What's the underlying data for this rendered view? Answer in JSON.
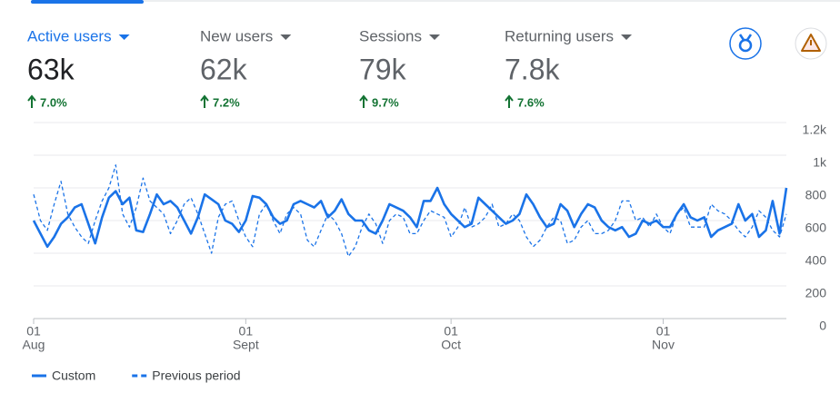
{
  "metrics": [
    {
      "label": "Active users",
      "value": "63k",
      "change": "7.0%"
    },
    {
      "label": "New users",
      "value": "62k",
      "change": "7.2%"
    },
    {
      "label": "Sessions",
      "value": "79k",
      "change": "9.7%"
    },
    {
      "label": "Returning users",
      "value": "7.8k",
      "change": "7.6%"
    }
  ],
  "chart_data": {
    "type": "line",
    "categories": [
      [
        "01",
        "Aug"
      ],
      null,
      null,
      null,
      null,
      null,
      null,
      null,
      null,
      null,
      null,
      null,
      null,
      null,
      null,
      null,
      null,
      null,
      null,
      null,
      null,
      null,
      null,
      null,
      null,
      null,
      null,
      null,
      null,
      null,
      null,
      [
        "01",
        "Sept"
      ],
      null,
      null,
      null,
      null,
      null,
      null,
      null,
      null,
      null,
      null,
      null,
      null,
      null,
      null,
      null,
      null,
      null,
      null,
      null,
      null,
      null,
      null,
      null,
      null,
      null,
      null,
      null,
      null,
      null,
      [
        "01",
        "Oct"
      ],
      null,
      null,
      null,
      null,
      null,
      null,
      null,
      null,
      null,
      null,
      null,
      null,
      null,
      null,
      null,
      null,
      null,
      null,
      null,
      null,
      null,
      null,
      null,
      null,
      null,
      null,
      null,
      null,
      null,
      null,
      [
        "01",
        "Nov"
      ],
      null,
      null,
      null,
      null,
      null,
      null,
      null,
      null,
      null,
      null,
      null,
      null,
      null,
      null,
      null,
      null,
      null,
      null
    ],
    "series": [
      {
        "name": "Custom",
        "color": "#1a73e8",
        "dashed": false,
        "values": [
          600,
          520,
          440,
          500,
          580,
          620,
          680,
          700,
          580,
          460,
          620,
          740,
          780,
          700,
          740,
          540,
          530,
          640,
          760,
          700,
          720,
          680,
          600,
          520,
          620,
          760,
          730,
          700,
          600,
          580,
          530,
          600,
          750,
          740,
          700,
          620,
          580,
          600,
          700,
          720,
          700,
          680,
          720,
          620,
          660,
          730,
          640,
          600,
          600,
          540,
          520,
          600,
          700,
          680,
          660,
          620,
          560,
          720,
          720,
          800,
          700,
          640,
          600,
          560,
          580,
          740,
          700,
          660,
          620,
          580,
          600,
          640,
          760,
          700,
          620,
          560,
          580,
          700,
          660,
          560,
          640,
          700,
          680,
          600,
          560,
          540,
          560,
          500,
          520,
          600,
          580,
          600,
          560,
          560,
          640,
          700,
          620,
          600,
          620,
          500,
          540,
          560,
          580,
          700,
          600,
          640,
          500,
          540,
          720,
          520,
          800
        ]
      },
      {
        "name": "Previous period",
        "color": "#1a73e8",
        "dashed": true,
        "values": [
          760,
          600,
          540,
          700,
          840,
          640,
          560,
          500,
          460,
          600,
          720,
          800,
          940,
          640,
          560,
          680,
          860,
          720,
          680,
          640,
          520,
          600,
          700,
          740,
          640,
          520,
          400,
          620,
          700,
          720,
          600,
          500,
          440,
          640,
          700,
          600,
          520,
          640,
          680,
          640,
          480,
          440,
          540,
          640,
          600,
          520,
          380,
          440,
          560,
          640,
          580,
          460,
          600,
          640,
          620,
          520,
          520,
          600,
          660,
          640,
          620,
          500,
          560,
          680,
          560,
          580,
          620,
          700,
          560,
          580,
          640,
          600,
          500,
          440,
          480,
          560,
          620,
          600,
          460,
          480,
          560,
          600,
          520,
          520,
          540,
          600,
          720,
          720,
          600,
          620,
          560,
          640,
          560,
          520,
          640,
          680,
          560,
          560,
          560,
          700,
          660,
          640,
          600,
          540,
          500,
          560,
          660,
          620,
          540,
          500,
          640
        ]
      }
    ],
    "ylim": [
      0,
      1200
    ],
    "yticks": [
      0,
      200,
      400,
      600,
      800,
      {
        "value": 1000,
        "label": "1k"
      },
      {
        "value": 1200,
        "label": "1.2k"
      }
    ],
    "grid": true,
    "legend": "bottom-left"
  }
}
